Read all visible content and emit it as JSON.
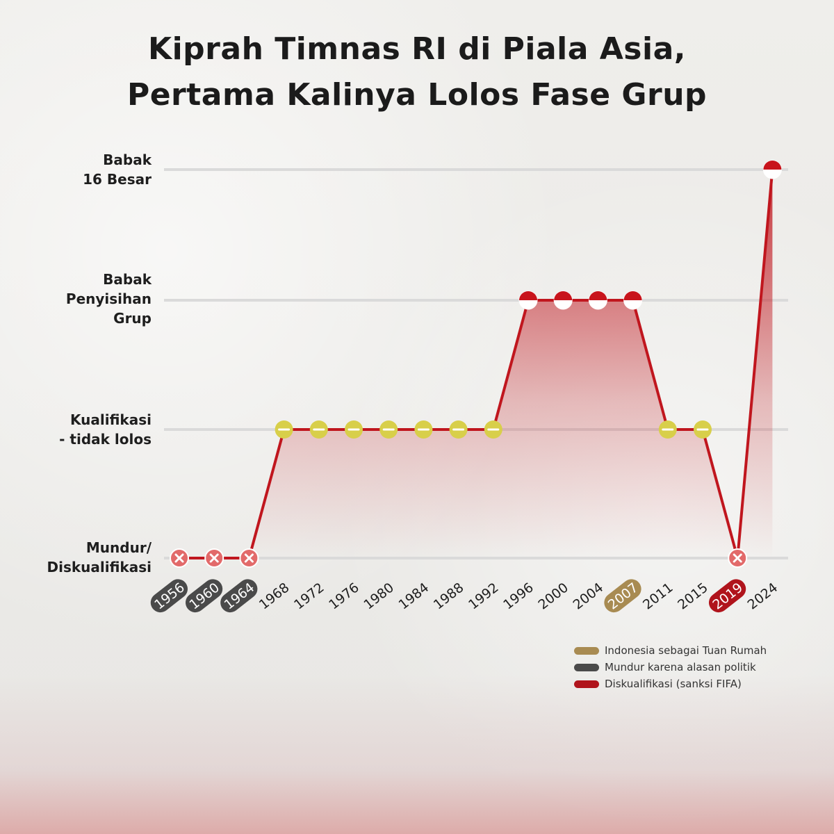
{
  "title": {
    "line1": "Kiprah Timnas RI di Piala Asia,",
    "line2": "Pertama Kalinya Lolos Fase Grup"
  },
  "legend": [
    {
      "label": "Indonesia sebagai Tuan Rumah",
      "color": "#a88b52"
    },
    {
      "label": "Mundur karena alasan politik",
      "color": "#4a4a4a"
    },
    {
      "label": "Diskualifikasi (sanksi FIFA)",
      "color": "#b0141c"
    }
  ],
  "colors": {
    "line": "#c0161e",
    "qualification_marker": "#d8cf4a",
    "withdrawn_marker": "#e26a6a",
    "top_marker": "#c8141c",
    "gridline": "#dadada"
  },
  "chart_data": {
    "type": "line",
    "title": "Kiprah Timnas RI di Piala Asia, Pertama Kalinya Lolos Fase Grup",
    "xlabel": "",
    "ylabel": "",
    "y_levels": [
      "Mundur/\nDiskualifikasi",
      "Kualifikasi\n- tidak lolos",
      "Babak\nPenyisihan\nGrup",
      "Babak\n16 Besar"
    ],
    "categories": [
      "1956",
      "1960",
      "1964",
      "1968",
      "1972",
      "1976",
      "1980",
      "1984",
      "1988",
      "1992",
      "1996",
      "2000",
      "2004",
      "2007",
      "2011",
      "2015",
      "2019",
      "2024"
    ],
    "values": [
      0,
      0,
      0,
      1,
      1,
      1,
      1,
      1,
      1,
      1,
      2,
      2,
      2,
      2,
      1,
      1,
      0,
      3
    ],
    "markers": [
      "x",
      "x",
      "x",
      "minus",
      "minus",
      "minus",
      "minus",
      "minus",
      "minus",
      "minus",
      "flag",
      "flag",
      "flag",
      "flag",
      "minus",
      "minus",
      "x",
      "flag"
    ],
    "highlights": [
      {
        "category": "1956",
        "type": "Mundur karena alasan politik"
      },
      {
        "category": "1960",
        "type": "Mundur karena alasan politik"
      },
      {
        "category": "1964",
        "type": "Mundur karena alasan politik"
      },
      {
        "category": "2007",
        "type": "Indonesia sebagai Tuan Rumah"
      },
      {
        "category": "2019",
        "type": "Diskualifikasi (sanksi FIFA)"
      }
    ],
    "ylim": [
      0,
      3
    ],
    "grid": true,
    "legend_position": "bottom-right"
  }
}
